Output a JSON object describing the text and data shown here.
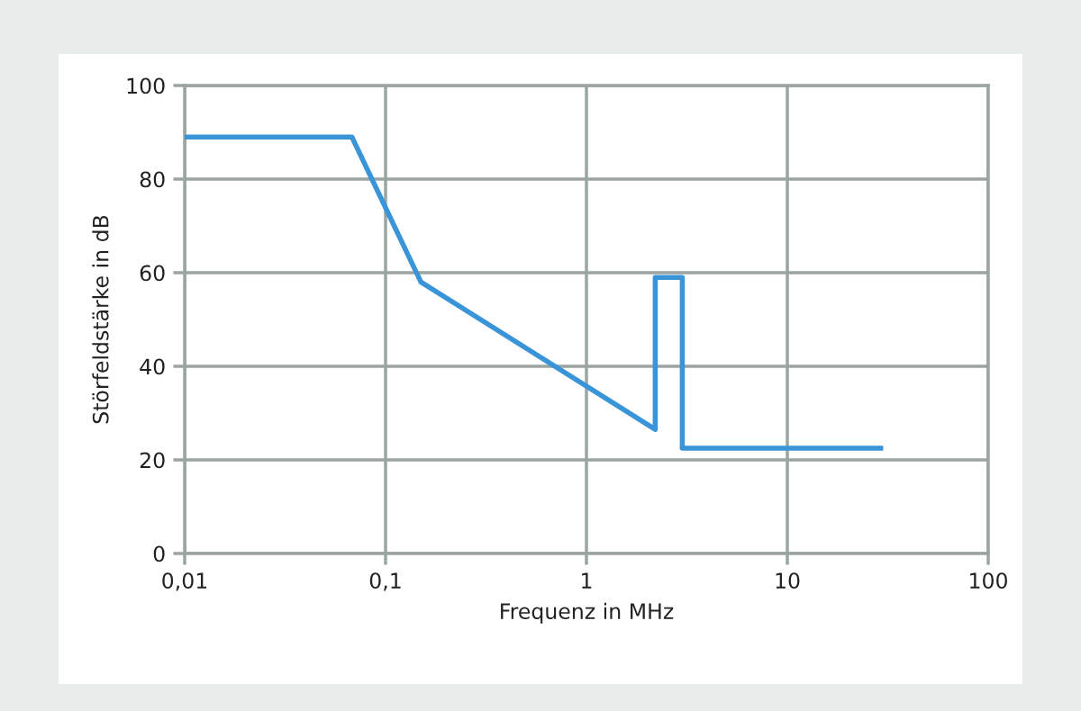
{
  "chart_data": {
    "type": "line",
    "xlabel": "Frequenz in MHz",
    "ylabel": "Störfeldstärke in dB",
    "log": "x",
    "x": [
      0.01,
      0.068,
      0.15,
      2.2,
      2.2,
      3.0,
      3.0,
      30
    ],
    "series": [
      {
        "color": "#3a95d8",
        "values": [
          89,
          89,
          58,
          26.5,
          59,
          59,
          22.5,
          22.5
        ]
      }
    ],
    "xlim": [
      0.01,
      100
    ],
    "xticks": [
      {
        "value": 0.01,
        "label": "0,01"
      },
      {
        "value": 0.1,
        "label": "0,1"
      },
      1,
      10,
      100
    ],
    "ylim": [
      0,
      100
    ],
    "yticks": [
      0,
      20,
      40,
      60,
      80,
      100
    ],
    "grid": true,
    "marker": "none",
    "line_style": "solid"
  }
}
